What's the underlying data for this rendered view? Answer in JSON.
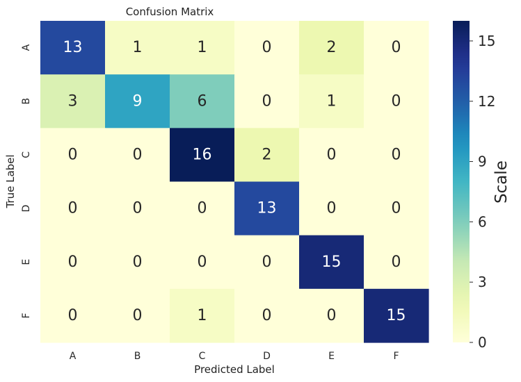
{
  "chart_data": {
    "type": "heatmap",
    "title": "Confusion Matrix",
    "xlabel": "Predicted Label",
    "ylabel": "True Label",
    "x_categories": [
      "A",
      "B",
      "C",
      "D",
      "E",
      "F"
    ],
    "y_categories": [
      "A",
      "B",
      "C",
      "D",
      "E",
      "F"
    ],
    "values": [
      [
        13,
        1,
        1,
        0,
        2,
        0
      ],
      [
        3,
        9,
        6,
        0,
        1,
        0
      ],
      [
        0,
        0,
        16,
        2,
        0,
        0
      ],
      [
        0,
        0,
        0,
        13,
        0,
        0
      ],
      [
        0,
        0,
        0,
        0,
        15,
        0
      ],
      [
        0,
        0,
        1,
        0,
        0,
        15
      ]
    ],
    "colorbar": {
      "label": "Scale",
      "min": 0,
      "max": 16,
      "ticks": [
        0,
        3,
        6,
        9,
        12,
        15
      ],
      "colormap": "YlGnBu"
    },
    "grid": false
  }
}
